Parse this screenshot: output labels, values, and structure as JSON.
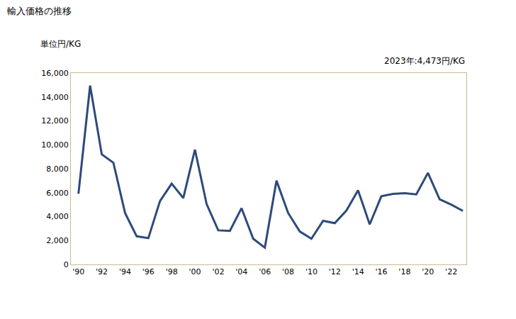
{
  "chart_data": {
    "type": "line",
    "title": "輸入価格の推移",
    "ylabel": "単位円/KG",
    "annotations": [
      "2023年:4,473円/KG"
    ],
    "categories": [
      "'90",
      null,
      "'92",
      null,
      "'94",
      null,
      "'96",
      null,
      "'98",
      null,
      "'00",
      null,
      "'02",
      null,
      "'04",
      null,
      "'06",
      null,
      "'08",
      null,
      "'10",
      null,
      "'12",
      null,
      "'14",
      null,
      "'16",
      null,
      "'18",
      null,
      "'20",
      null,
      "'22",
      null
    ],
    "values": [
      5900,
      14950,
      9200,
      8500,
      4300,
      2350,
      2200,
      5300,
      6750,
      5550,
      9600,
      5050,
      2850,
      2800,
      4700,
      2150,
      1400,
      7000,
      4300,
      2750,
      2150,
      3650,
      3450,
      4500,
      6200,
      3350,
      5700,
      5900,
      5950,
      5850,
      7650,
      5450,
      5000,
      4473
    ],
    "color": "#2e4a7a",
    "ylim": [
      0,
      16000
    ],
    "yticks": [
      0,
      {
        "value": 2000,
        "label": "2,000"
      },
      {
        "value": 4000,
        "label": "4,000"
      },
      {
        "value": 6000,
        "label": "6,000"
      },
      {
        "value": 8000,
        "label": "8,000"
      },
      {
        "value": 10000,
        "label": "10,000"
      },
      {
        "value": 12000,
        "label": "12,000"
      },
      {
        "value": 14000,
        "label": "14,000"
      },
      {
        "value": 16000,
        "label": "16,000"
      }
    ],
    "grid": false
  }
}
